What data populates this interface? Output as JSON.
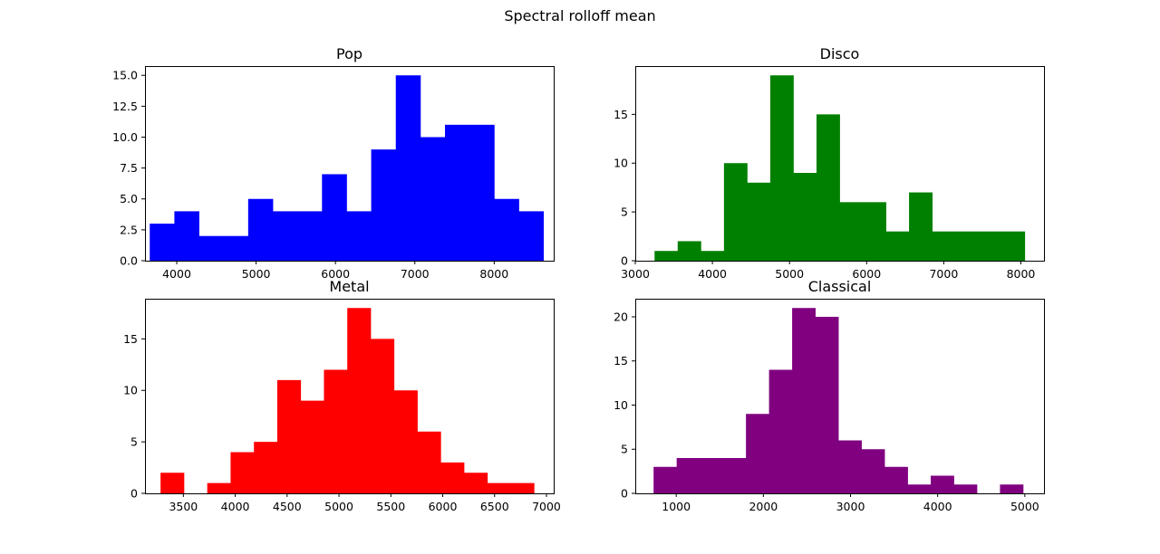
{
  "figure": {
    "title": "Spectral rolloff mean"
  },
  "chart_data": [
    {
      "type": "bar",
      "title": "Pop",
      "color": "#0000ff",
      "xlim": [
        3600,
        8750
      ],
      "ylim": [
        0,
        15.75
      ],
      "xticks": [
        4000,
        5000,
        6000,
        7000,
        8000
      ],
      "yticks": [
        0.0,
        2.5,
        5.0,
        7.5,
        10.0,
        12.5,
        15.0
      ],
      "ytick_labels": [
        "0.0",
        "2.5",
        "5.0",
        "7.5",
        "10.0",
        "12.5",
        "15.0"
      ],
      "bin_edges": [
        3660,
        3970,
        4280,
        4590,
        4900,
        5210,
        5520,
        5830,
        6140,
        6450,
        6760,
        7070,
        7380,
        7690,
        8000,
        8310,
        8620
      ],
      "values": [
        3,
        4,
        2,
        2,
        5,
        4,
        4,
        7,
        4,
        9,
        15,
        10,
        11,
        11,
        5,
        4
      ]
    },
    {
      "type": "bar",
      "title": "Disco",
      "color": "#008000",
      "xlim": [
        3000,
        8300
      ],
      "ylim": [
        0,
        19.95
      ],
      "xticks": [
        3000,
        4000,
        5000,
        6000,
        7000,
        8000
      ],
      "yticks": [
        0,
        5,
        10,
        15
      ],
      "ytick_labels": [
        "0",
        "5",
        "10",
        "15"
      ],
      "bin_edges": [
        3250,
        3550,
        3850,
        4150,
        4450,
        4750,
        5050,
        5350,
        5650,
        5950,
        6250,
        6550,
        6850,
        7150,
        7450,
        7750,
        8050
      ],
      "values": [
        1,
        2,
        1,
        10,
        8,
        19,
        9,
        15,
        6,
        6,
        3,
        7,
        3,
        3,
        3,
        3
      ]
    },
    {
      "type": "bar",
      "title": "Metal",
      "color": "#ff0000",
      "xlim": [
        3130,
        7070
      ],
      "ylim": [
        0,
        18.9
      ],
      "xticks": [
        3500,
        4000,
        4500,
        5000,
        5500,
        6000,
        6500,
        7000
      ],
      "yticks": [
        0,
        5,
        10,
        15
      ],
      "ytick_labels": [
        "0",
        "5",
        "10",
        "15"
      ],
      "bin_edges": [
        3280,
        3505,
        3730,
        3955,
        4180,
        4405,
        4630,
        4855,
        5080,
        5305,
        5530,
        5755,
        5980,
        6205,
        6430,
        6655,
        6880
      ],
      "values": [
        2,
        0,
        1,
        4,
        5,
        11,
        9,
        12,
        18,
        15,
        10,
        6,
        3,
        2,
        1,
        1
      ]
    },
    {
      "type": "bar",
      "title": "Classical",
      "color": "#800080",
      "xlim": [
        530,
        5220
      ],
      "ylim": [
        0,
        22.05
      ],
      "xticks": [
        1000,
        2000,
        3000,
        4000,
        5000
      ],
      "yticks": [
        0,
        5,
        10,
        15,
        20
      ],
      "ytick_labels": [
        "0",
        "5",
        "10",
        "15",
        "20"
      ],
      "bin_edges": [
        740,
        1005,
        1270,
        1535,
        1800,
        2065,
        2330,
        2595,
        2860,
        3125,
        3390,
        3655,
        3920,
        4185,
        4450,
        4715,
        4980
      ],
      "values": [
        3,
        4,
        4,
        4,
        9,
        14,
        21,
        20,
        6,
        5,
        3,
        1,
        2,
        1,
        0,
        1
      ]
    }
  ]
}
